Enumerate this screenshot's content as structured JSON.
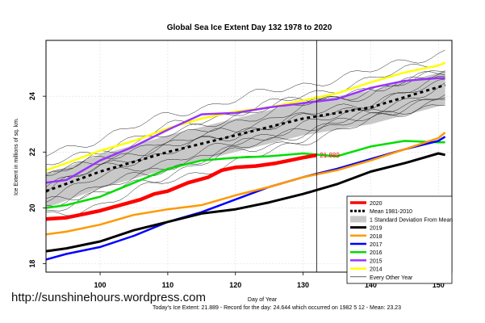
{
  "chart_data": {
    "type": "line",
    "title": "Global Sea Ice Extent Day 132 1978 to 2020",
    "xlabel": "Day of Year",
    "ylabel": "Ice Extent in millions of sq. km.",
    "xlim": [
      92,
      152
    ],
    "ylim": [
      17.7,
      26.0
    ],
    "xticks": [
      100,
      110,
      120,
      130,
      140,
      150
    ],
    "yticks": [
      18,
      20,
      22,
      24
    ],
    "grid": true,
    "legend_position": "bottom-right",
    "current_day": 132,
    "current_value_label": "21.889",
    "footer": "Today's Ice Extent: 21.889  - Record for the day: 24.644 which occurred on 1982 5 12  - Mean: 23.23",
    "std_band": {
      "name": "1 Standard Deviation From Mean",
      "x": [
        92,
        100,
        110,
        120,
        130,
        140,
        151
      ],
      "lower": [
        20.0,
        20.7,
        21.4,
        22.0,
        22.6,
        23.0,
        23.7
      ],
      "upper": [
        21.2,
        21.9,
        22.6,
        23.2,
        23.8,
        24.2,
        24.9
      ]
    },
    "series": [
      {
        "name": "2020",
        "color": "#ff0000",
        "width": 4.5,
        "x": [
          92,
          95,
          98,
          100,
          103,
          106,
          108,
          110,
          113,
          116,
          118,
          120,
          123,
          126,
          128,
          130,
          132
        ],
        "y": [
          19.6,
          19.65,
          19.8,
          19.9,
          20.1,
          20.3,
          20.5,
          20.6,
          20.9,
          21.1,
          21.35,
          21.45,
          21.5,
          21.6,
          21.7,
          21.8,
          21.889
        ]
      },
      {
        "name": "Mean 1981-2010",
        "color": "#000000",
        "width": 3,
        "dash": "4,4",
        "x": [
          92,
          100,
          110,
          120,
          130,
          140,
          151
        ],
        "y": [
          20.6,
          21.3,
          22.0,
          22.6,
          23.2,
          23.6,
          24.4
        ]
      },
      {
        "name": "2019",
        "color": "#000000",
        "width": 3,
        "x": [
          92,
          95,
          100,
          105,
          110,
          115,
          120,
          125,
          130,
          135,
          140,
          145,
          150,
          151
        ],
        "y": [
          18.45,
          18.55,
          18.8,
          19.2,
          19.5,
          19.8,
          19.95,
          20.2,
          20.5,
          20.85,
          21.3,
          21.6,
          21.95,
          21.9
        ]
      },
      {
        "name": "2018",
        "color": "#ff9900",
        "width": 2.5,
        "x": [
          92,
          95,
          100,
          105,
          110,
          115,
          120,
          125,
          130,
          135,
          140,
          145,
          150,
          151
        ],
        "y": [
          19.05,
          19.15,
          19.4,
          19.75,
          19.95,
          20.1,
          20.45,
          20.75,
          21.1,
          21.35,
          21.7,
          22.1,
          22.5,
          22.7
        ]
      },
      {
        "name": "2017",
        "color": "#0000ff",
        "width": 2.5,
        "x": [
          92,
          95,
          100,
          105,
          110,
          115,
          120,
          125,
          130,
          135,
          140,
          145,
          150,
          151
        ],
        "y": [
          18.15,
          18.35,
          18.6,
          19.0,
          19.5,
          19.85,
          20.3,
          20.75,
          21.1,
          21.4,
          21.75,
          22.1,
          22.4,
          22.55
        ]
      },
      {
        "name": "2016",
        "color": "#00dd00",
        "width": 2.5,
        "x": [
          92,
          95,
          100,
          105,
          110,
          115,
          120,
          125,
          130,
          135,
          140,
          145,
          150,
          151
        ],
        "y": [
          20.0,
          20.1,
          20.4,
          20.9,
          21.4,
          21.7,
          21.8,
          21.85,
          21.95,
          21.85,
          22.2,
          22.4,
          22.35,
          22.35
        ]
      },
      {
        "name": "2015",
        "color": "#9933ff",
        "width": 2.5,
        "x": [
          92,
          95,
          100,
          105,
          110,
          115,
          120,
          125,
          130,
          135,
          140,
          145,
          150,
          151
        ],
        "y": [
          20.9,
          21.0,
          21.7,
          22.2,
          22.8,
          23.35,
          23.4,
          23.6,
          23.75,
          23.9,
          24.3,
          24.55,
          24.65,
          24.65
        ]
      },
      {
        "name": "2014",
        "color": "#ffff00",
        "width": 2.5,
        "x": [
          92,
          95,
          100,
          105,
          110,
          115,
          120,
          125,
          130,
          135,
          140,
          145,
          150,
          151
        ],
        "y": [
          21.35,
          21.6,
          22.05,
          22.4,
          22.85,
          23.2,
          23.45,
          23.6,
          23.85,
          24.1,
          24.5,
          24.85,
          25.1,
          25.2
        ]
      },
      {
        "name": "Every Other Year",
        "color": "#000000",
        "width": 0.7,
        "x": [
          92,
          100,
          110,
          120,
          130,
          140,
          151
        ],
        "y": [
          20.6,
          21.3,
          22.0,
          22.6,
          23.2,
          23.6,
          24.4
        ]
      }
    ],
    "background_years": [
      [
        19.7,
        20.1,
        21.0,
        21.6,
        22.4,
        23.1,
        23.8
      ],
      [
        20.1,
        20.8,
        21.4,
        22.1,
        22.7,
        23.4,
        24.1
      ],
      [
        20.4,
        21.1,
        21.7,
        22.3,
        23.0,
        23.5,
        24.3
      ],
      [
        20.8,
        21.4,
        22.0,
        22.7,
        23.3,
        23.8,
        24.6
      ],
      [
        21.1,
        21.8,
        22.4,
        23.1,
        23.7,
        24.2,
        24.9
      ],
      [
        21.5,
        22.1,
        22.9,
        23.4,
        24.0,
        24.6,
        25.3
      ],
      [
        21.9,
        22.5,
        23.3,
        23.9,
        24.4,
        24.9,
        25.6
      ],
      [
        20.3,
        20.6,
        21.5,
        22.2,
        22.9,
        23.2,
        23.9
      ],
      [
        19.9,
        20.5,
        21.2,
        22.0,
        22.5,
        23.3,
        24.0
      ],
      [
        21.3,
        21.6,
        22.3,
        22.8,
        23.6,
        24.3,
        24.8
      ],
      [
        20.6,
        21.5,
        22.2,
        22.6,
        23.2,
        23.7,
        24.5
      ],
      [
        21.0,
        22.0,
        22.6,
        23.3,
        23.9,
        24.0,
        25.0
      ]
    ]
  }
}
